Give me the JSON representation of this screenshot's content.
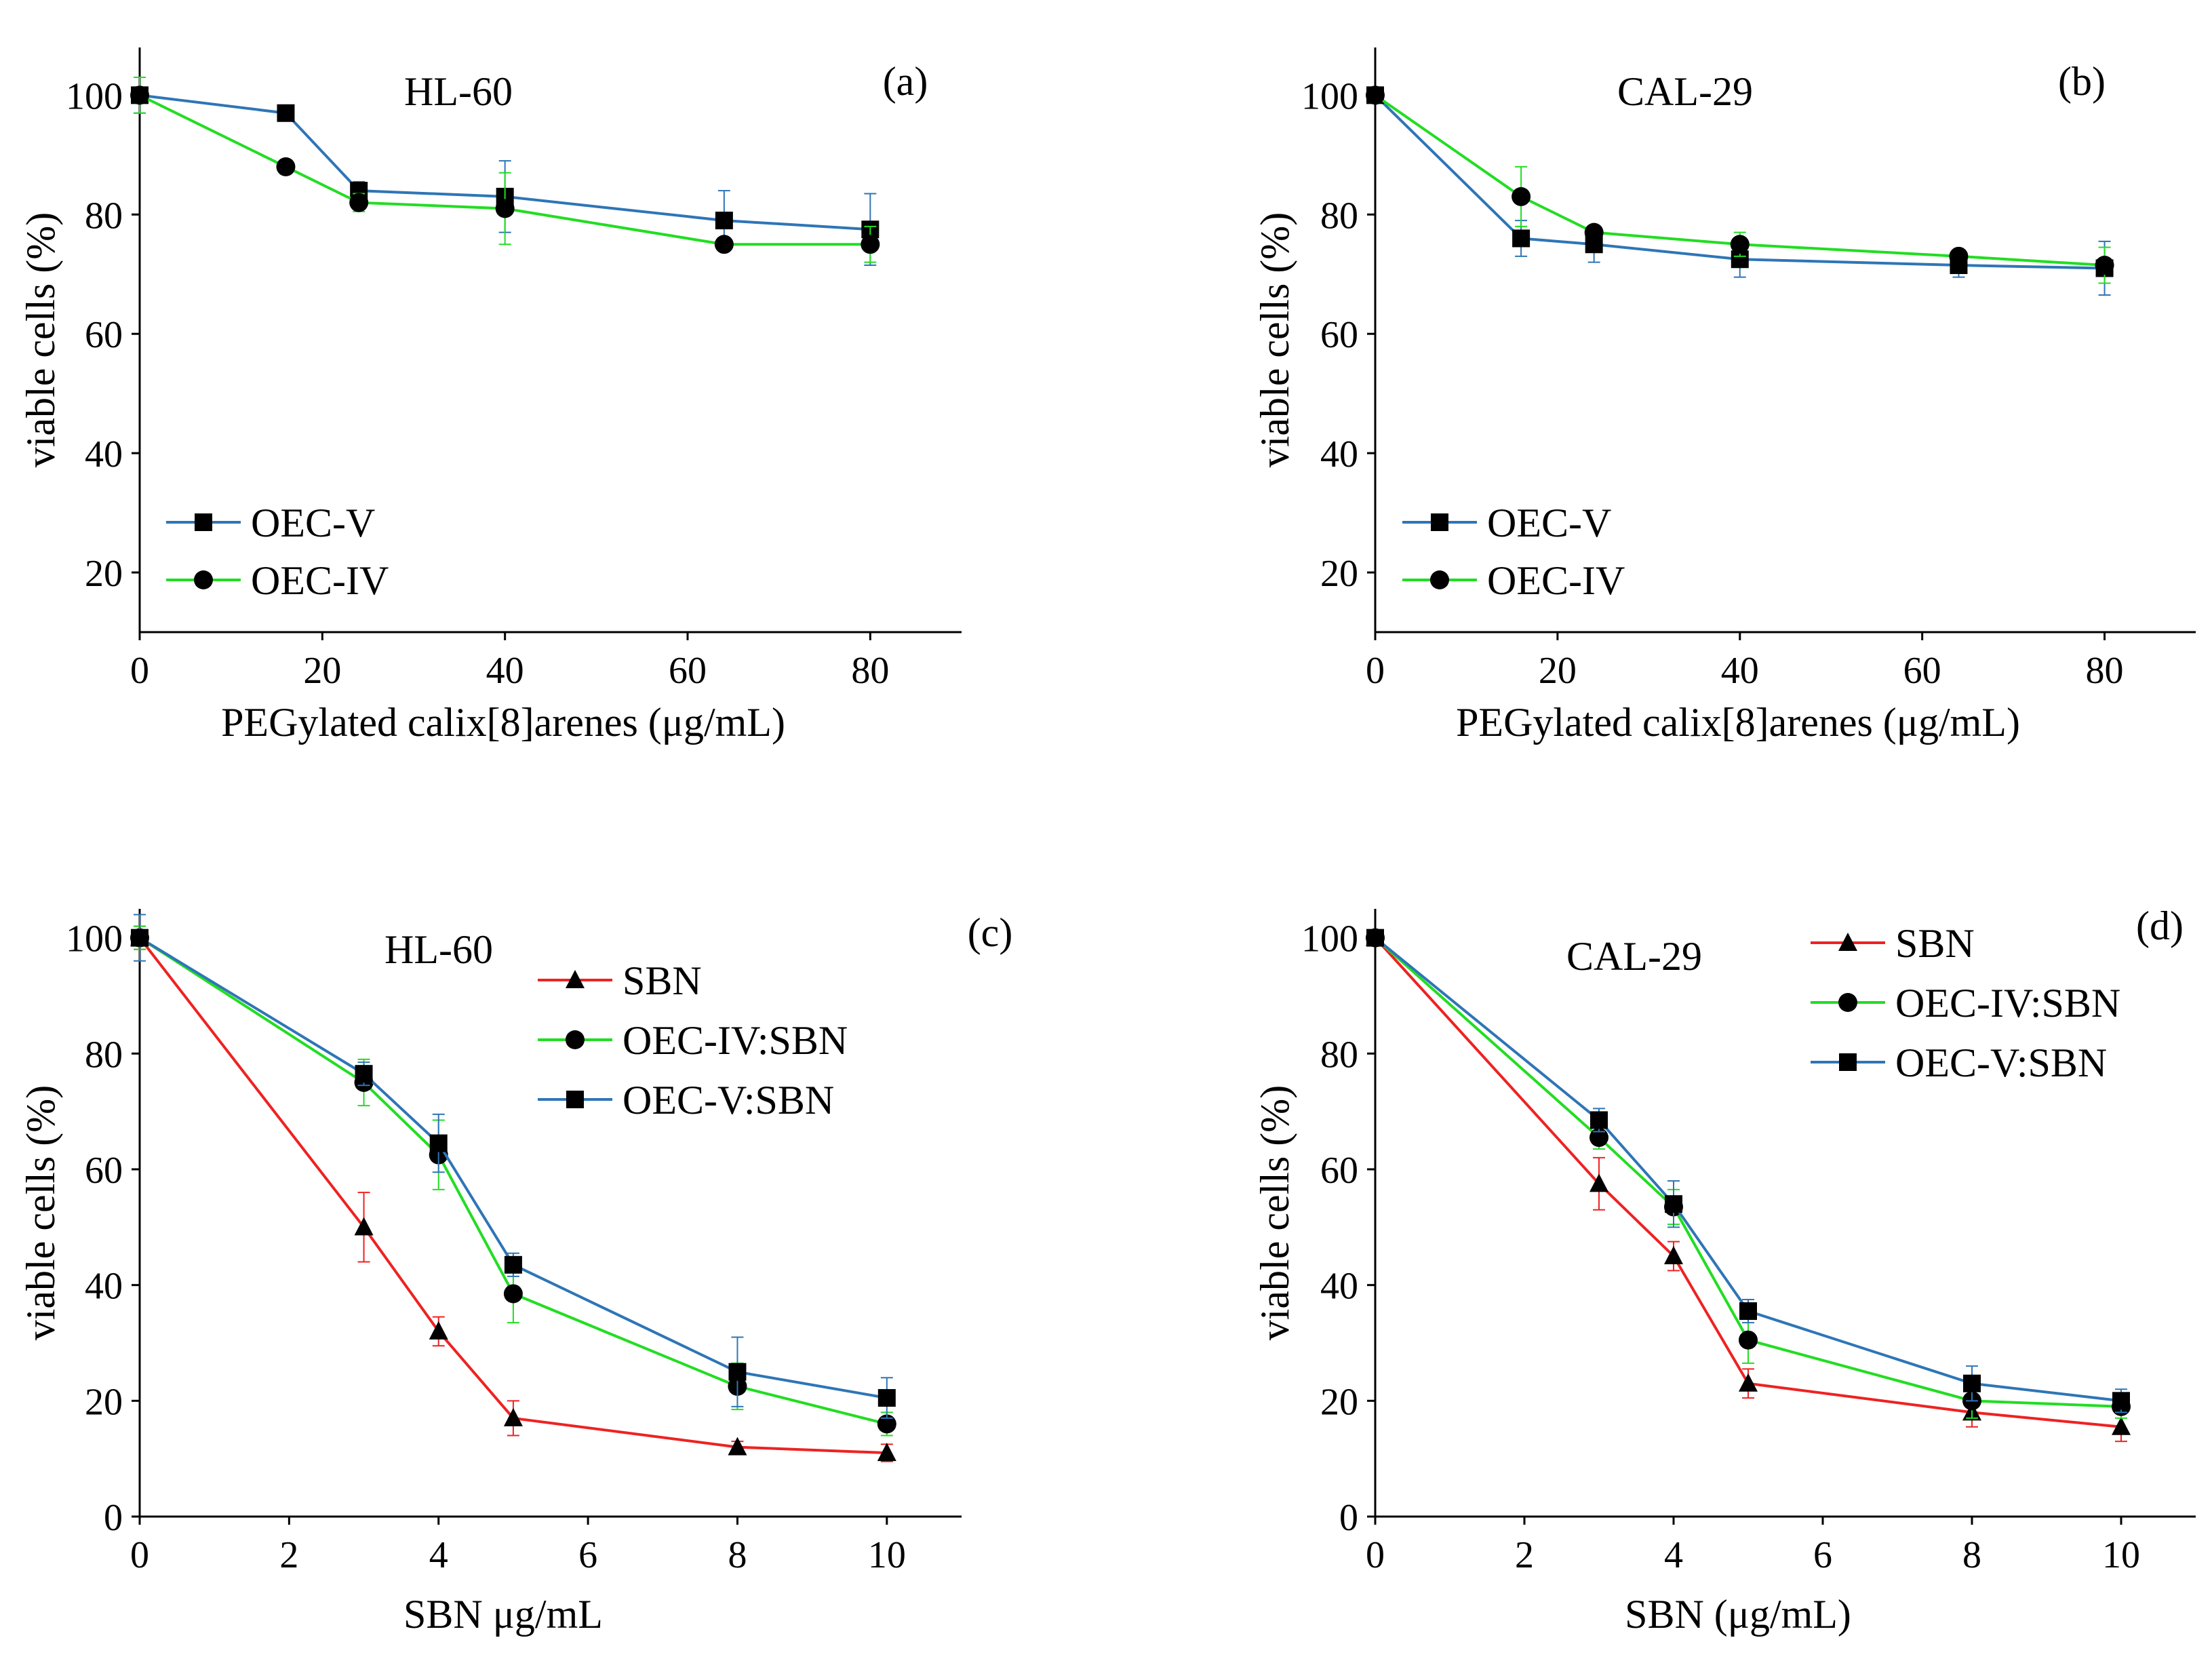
{
  "colors": {
    "blue": "#2e75b6",
    "green": "#22dd22",
    "red": "#ee2222",
    "marker": "#000000",
    "axis": "#000000"
  },
  "chart_data": [
    {
      "id": "a",
      "type": "line",
      "letter": "(a)",
      "title": "HL-60",
      "xlabel": "PEGylated calix[8]arenes (μg/mL)",
      "ylabel": "viable cells (%)",
      "xlim": [
        0,
        90
      ],
      "ylim": [
        10,
        108
      ],
      "xticks": [
        0,
        20,
        40,
        60,
        80
      ],
      "yticks": [
        20,
        40,
        60,
        80,
        100
      ],
      "legend_position": "lower-left",
      "series": [
        {
          "name": "OEC-V",
          "color": "blue",
          "marker": "square",
          "x": [
            0,
            16,
            24,
            40,
            64,
            80
          ],
          "y": [
            100,
            97,
            84,
            83,
            79,
            77.5
          ],
          "err": [
            3,
            1,
            1.5,
            6,
            5,
            6
          ]
        },
        {
          "name": "OEC-IV",
          "color": "green",
          "marker": "circle",
          "x": [
            0,
            16,
            24,
            40,
            64,
            80
          ],
          "y": [
            100,
            88,
            82,
            81,
            75,
            75
          ],
          "err": [
            3,
            1,
            1.5,
            6,
            1,
            3
          ]
        }
      ]
    },
    {
      "id": "b",
      "type": "line",
      "letter": "(b)",
      "title": "CAL-29",
      "xlabel": "PEGylated calix[8]arenes (μg/mL)",
      "ylabel": "viable cells (%)",
      "xlim": [
        0,
        90
      ],
      "ylim": [
        10,
        108
      ],
      "xticks": [
        0,
        20,
        40,
        60,
        80
      ],
      "yticks": [
        20,
        40,
        60,
        80,
        100
      ],
      "legend_position": "lower-left",
      "series": [
        {
          "name": "OEC-V",
          "color": "blue",
          "marker": "square",
          "x": [
            0,
            16,
            24,
            40,
            64,
            80
          ],
          "y": [
            100,
            76,
            75,
            72.5,
            71.5,
            71
          ],
          "err": [
            1,
            3,
            3,
            3,
            2,
            4.5
          ]
        },
        {
          "name": "OEC-IV",
          "color": "green",
          "marker": "circle",
          "x": [
            0,
            16,
            24,
            40,
            64,
            80
          ],
          "y": [
            100,
            83,
            77,
            75,
            73,
            71.5
          ],
          "err": [
            1,
            5,
            1,
            2,
            1,
            3
          ]
        }
      ]
    },
    {
      "id": "c",
      "type": "line",
      "letter": "(c)",
      "title": "HL-60",
      "xlabel": "SBN μg/mL",
      "ylabel": "viable cells (%)",
      "xlim": [
        0,
        11
      ],
      "ylim": [
        0,
        105
      ],
      "xticks": [
        0,
        2,
        4,
        6,
        8,
        10
      ],
      "yticks": [
        0,
        20,
        40,
        60,
        80,
        100
      ],
      "legend_position": "top-right",
      "series": [
        {
          "name": "SBN",
          "color": "red",
          "marker": "triangle",
          "x": [
            0,
            3,
            4,
            5,
            8,
            10
          ],
          "y": [
            100,
            50,
            32,
            17,
            12,
            11
          ],
          "err": [
            2,
            6,
            2.5,
            3,
            1,
            1.5
          ]
        },
        {
          "name": "OEC-IV:SBN",
          "color": "green",
          "marker": "circle",
          "x": [
            0,
            3,
            4,
            5,
            8,
            10
          ],
          "y": [
            100,
            75,
            62.5,
            38.5,
            22.5,
            16
          ],
          "err": [
            2,
            4,
            6,
            5,
            4,
            2
          ]
        },
        {
          "name": "OEC-V:SBN",
          "color": "blue",
          "marker": "square",
          "x": [
            0,
            3,
            4,
            5,
            8,
            10
          ],
          "y": [
            100,
            76.5,
            64.5,
            43.5,
            25,
            20.5
          ],
          "err": [
            4,
            2,
            5,
            2,
            6,
            3.5
          ]
        }
      ]
    },
    {
      "id": "d",
      "type": "line",
      "letter": "(d)",
      "title": "CAL-29",
      "xlabel": "SBN (μg/mL)",
      "ylabel": "viable cells (%)",
      "xlim": [
        0,
        11
      ],
      "ylim": [
        0,
        105
      ],
      "xticks": [
        0,
        2,
        4,
        6,
        8,
        10
      ],
      "yticks": [
        0,
        20,
        40,
        60,
        80,
        100
      ],
      "legend_position": "top-right",
      "series": [
        {
          "name": "SBN",
          "color": "red",
          "marker": "triangle",
          "x": [
            0,
            3,
            4,
            5,
            8,
            10
          ],
          "y": [
            100,
            57.5,
            45,
            23,
            18,
            15.5
          ],
          "err": [
            1,
            4.5,
            2.5,
            2.5,
            2.5,
            2.5
          ]
        },
        {
          "name": "OEC-IV:SBN",
          "color": "green",
          "marker": "circle",
          "x": [
            0,
            3,
            4,
            5,
            8,
            10
          ],
          "y": [
            100,
            65.5,
            53.5,
            30.5,
            20,
            19
          ],
          "err": [
            1,
            2,
            3,
            4,
            3,
            2
          ]
        },
        {
          "name": "OEC-V:SBN",
          "color": "blue",
          "marker": "square",
          "x": [
            0,
            3,
            4,
            5,
            8,
            10
          ],
          "y": [
            100,
            68.5,
            54,
            35.5,
            23,
            20
          ],
          "err": [
            1,
            2,
            4,
            2,
            3,
            2
          ]
        }
      ]
    }
  ]
}
